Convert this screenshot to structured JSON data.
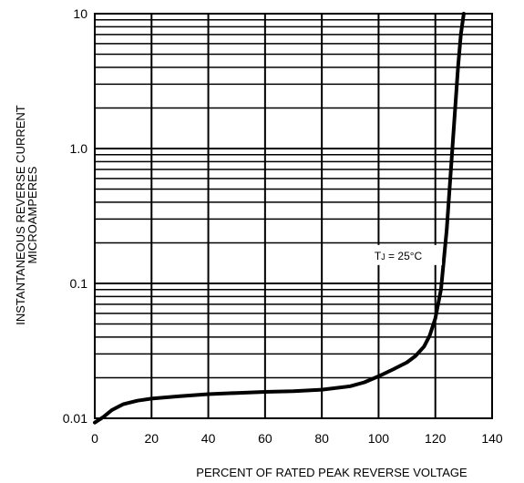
{
  "chart_data": {
    "type": "line",
    "title": "",
    "xlabel": "PERCENT OF RATED PEAK REVERSE VOLTAGE",
    "ylabel_lines": [
      "INSTANTANEOUS REVERSE CURRENT",
      "MICROAMPERES"
    ],
    "xlim": [
      0,
      140
    ],
    "ylim": [
      0.01,
      10
    ],
    "yscale": "log",
    "grid": true,
    "x_ticks": [
      0,
      20,
      40,
      60,
      80,
      100,
      120,
      140
    ],
    "x_tick_labels": [
      "0",
      "20",
      "40",
      "60",
      "80",
      "100",
      "120",
      "140"
    ],
    "y_ticks": [
      0.01,
      0.1,
      1.0,
      10
    ],
    "y_tick_labels": [
      "0.01",
      "0.1",
      "1.0",
      "10"
    ],
    "annotation": {
      "text_main": "T",
      "text_sub": "J",
      "text_rest": " = 25°C",
      "x": 123,
      "y": 0.155
    },
    "series": [
      {
        "x": [
          0,
          3,
          6,
          10,
          15,
          20,
          30,
          40,
          50,
          60,
          70,
          80,
          90,
          95,
          100,
          105,
          110,
          113,
          116,
          118,
          120,
          122,
          124,
          126,
          128,
          129,
          130
        ],
        "y": [
          0.0093,
          0.0102,
          0.0115,
          0.0127,
          0.0135,
          0.014,
          0.0146,
          0.0151,
          0.0154,
          0.0157,
          0.0159,
          0.0163,
          0.0173,
          0.0185,
          0.0205,
          0.023,
          0.026,
          0.029,
          0.034,
          0.041,
          0.055,
          0.09,
          0.25,
          1.0,
          4.0,
          7.0,
          10.0
        ]
      }
    ]
  }
}
